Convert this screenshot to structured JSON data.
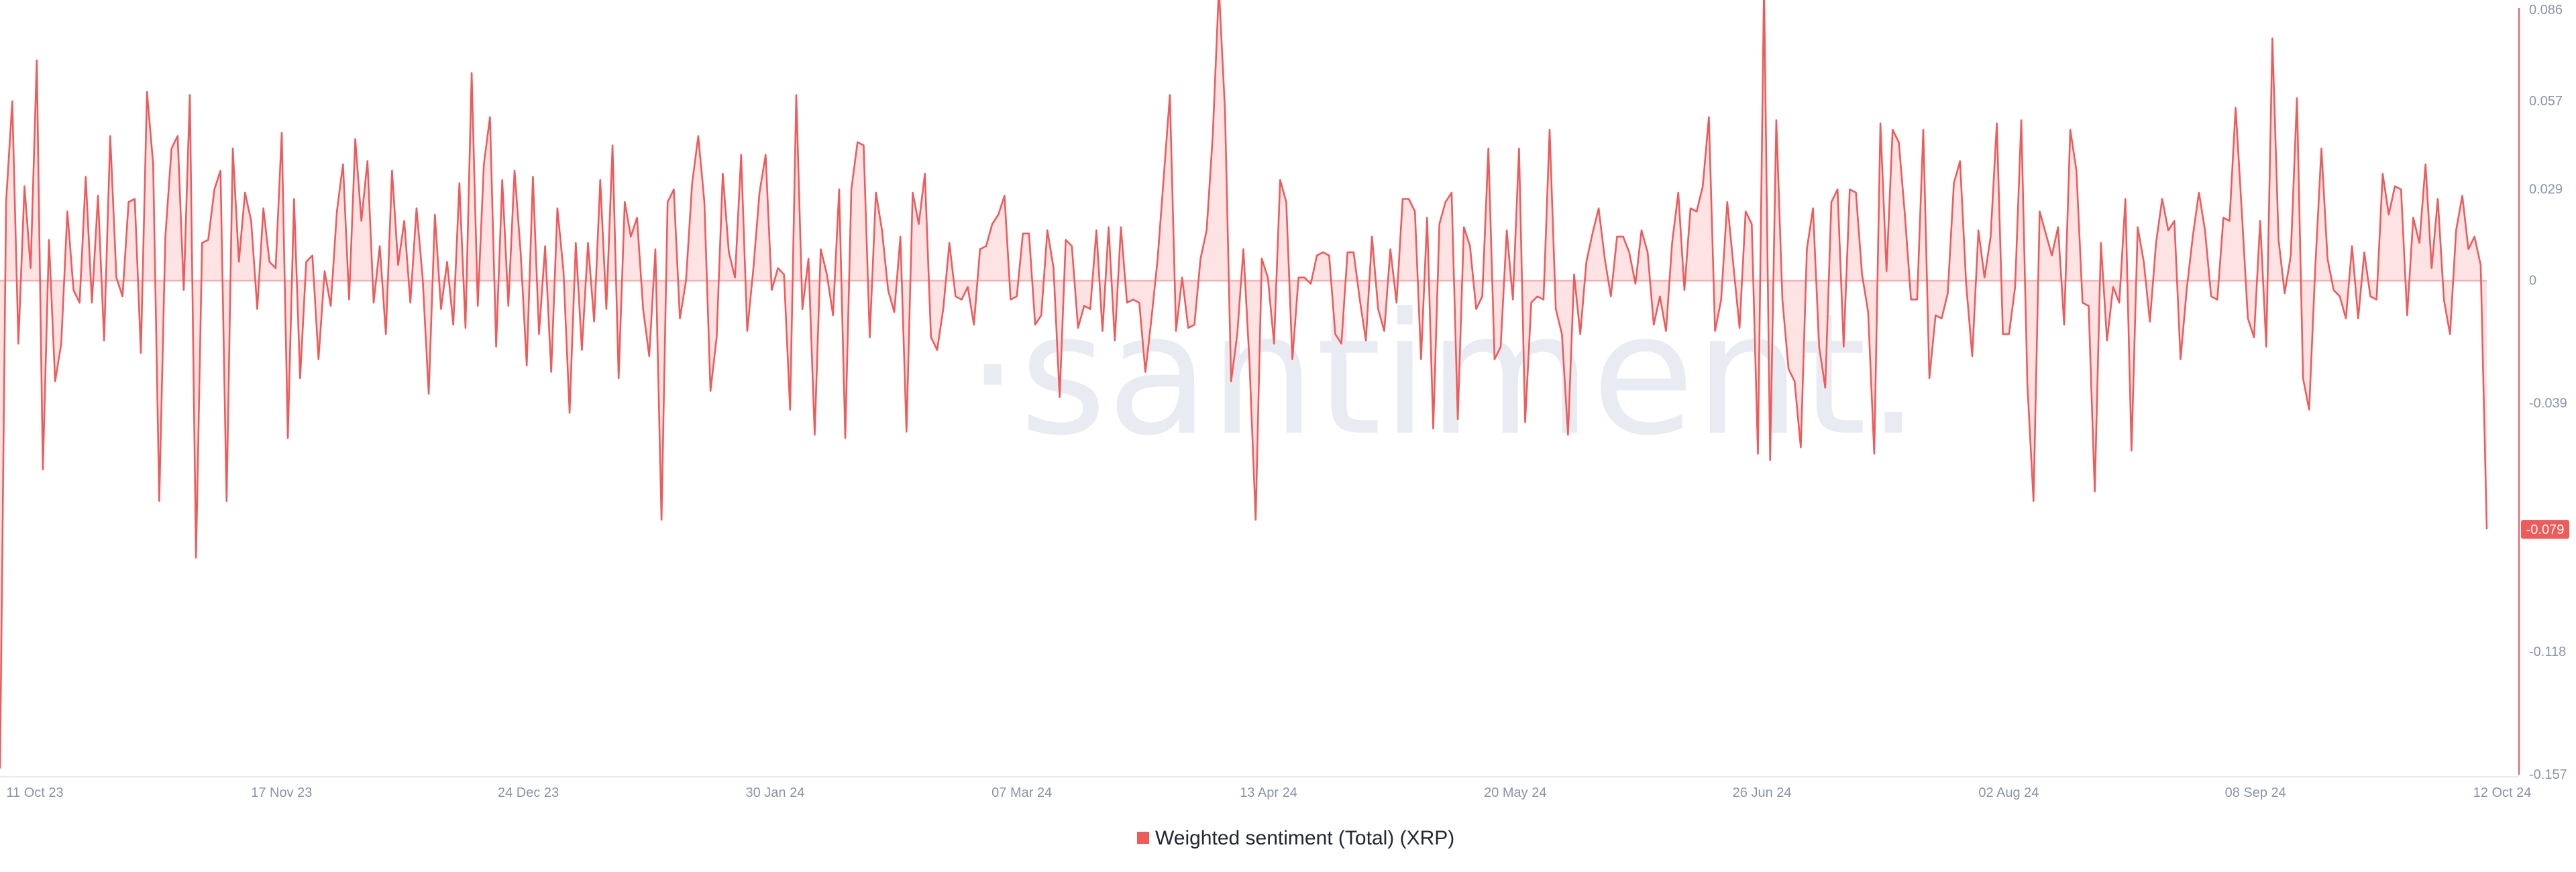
{
  "watermark": "·santiment.",
  "last_value_label": "-0.079",
  "chart_data": {
    "type": "area",
    "series": [
      {
        "name": "Weighted sentiment (Total) (XRP)",
        "color": "#f05a5b",
        "values": [
          -0.155,
          0.025,
          0.057,
          -0.02,
          0.03,
          0.004,
          0.07,
          -0.06,
          0.013,
          -0.032,
          -0.02,
          0.022,
          -0.003,
          -0.007,
          0.033,
          -0.007,
          0.027,
          -0.019,
          0.046,
          0.001,
          -0.005,
          0.025,
          0.026,
          -0.023,
          0.06,
          0.037,
          -0.07,
          0.014,
          0.042,
          0.046,
          -0.003,
          0.059,
          -0.088,
          0.012,
          0.013,
          0.029,
          0.035,
          -0.07,
          0.042,
          0.006,
          0.028,
          0.019,
          -0.009,
          0.023,
          0.006,
          0.004,
          0.047,
          -0.05,
          0.026,
          -0.031,
          0.006,
          0.008,
          -0.025,
          0.003,
          -0.008,
          0.022,
          0.037,
          -0.006,
          0.045,
          0.019,
          0.038,
          -0.007,
          0.011,
          -0.017,
          0.035,
          0.005,
          0.019,
          -0.007,
          0.023,
          0.001,
          -0.036,
          0.021,
          -0.009,
          0.006,
          -0.014,
          0.031,
          -0.015,
          0.066,
          -0.008,
          0.037,
          0.052,
          -0.021,
          0.032,
          -0.008,
          0.035,
          0.009,
          -0.027,
          0.033,
          -0.017,
          0.011,
          -0.029,
          0.023,
          0.003,
          -0.042,
          0.012,
          -0.022,
          0.012,
          -0.013,
          0.032,
          -0.009,
          0.043,
          -0.031,
          0.025,
          0.014,
          0.02,
          -0.009,
          -0.024,
          0.01,
          -0.076,
          0.025,
          0.029,
          -0.012,
          0,
          0.031,
          0.046,
          0.025,
          -0.035,
          -0.018,
          0.034,
          0.009,
          0.001,
          0.04,
          -0.016,
          0.004,
          0.028,
          0.04,
          -0.003,
          0.004,
          0.002,
          -0.041,
          0.059,
          -0.009,
          0.007,
          -0.049,
          0.01,
          0.002,
          -0.011,
          0.029,
          -0.05,
          0.029,
          0.044,
          0.043,
          -0.018,
          0.028,
          0.016,
          -0.003,
          -0.01,
          0.014,
          -0.048,
          0.028,
          0.018,
          0.034,
          -0.018,
          -0.022,
          -0.009,
          0.012,
          -0.005,
          -0.006,
          -0.002,
          -0.014,
          0.01,
          0.011,
          0.018,
          0.021,
          0.027,
          -0.006,
          -0.005,
          0.015,
          0.015,
          -0.014,
          -0.011,
          0.016,
          0.004,
          -0.037,
          0.013,
          0.011,
          -0.015,
          -0.008,
          -0.009,
          0.016,
          -0.016,
          0.017,
          -0.019,
          0.017,
          -0.007,
          -0.006,
          -0.007,
          -0.029,
          -0.012,
          0.007,
          0.033,
          0.059,
          -0.016,
          0.001,
          -0.015,
          -0.014,
          0.007,
          0.016,
          0.046,
          0.093,
          0.054,
          -0.032,
          -0.017,
          0.01,
          -0.026,
          -0.076,
          0.007,
          0.001,
          -0.02,
          0.032,
          0.025,
          -0.025,
          0.001,
          0.001,
          -0.001,
          0.008,
          0.009,
          0.008,
          -0.017,
          -0.02,
          0.009,
          0.009,
          -0.006,
          -0.019,
          0.014,
          -0.009,
          -0.016,
          0.01,
          -0.007,
          0.026,
          0.026,
          0.022,
          -0.025,
          0.02,
          -0.047,
          0.018,
          0.025,
          0.028,
          -0.044,
          0.017,
          0.011,
          -0.009,
          -0.005,
          0.042,
          -0.025,
          -0.021,
          0.016,
          -0.006,
          0.042,
          -0.045,
          -0.007,
          -0.005,
          -0.006,
          0.048,
          -0.009,
          -0.017,
          -0.049,
          0.002,
          -0.017,
          0.006,
          0.015,
          0.023,
          0.007,
          -0.005,
          0.014,
          0.014,
          0.009,
          -0.001,
          0.016,
          0.009,
          -0.014,
          -0.005,
          -0.016,
          0.012,
          0.028,
          -0.003,
          0.023,
          0.022,
          0.03,
          0.052,
          -0.016,
          -0.006,
          0.025,
          0.005,
          -0.015,
          0.022,
          0.018,
          -0.055,
          0.094,
          -0.057,
          0.051,
          -0.006,
          -0.028,
          -0.032,
          -0.053,
          0.01,
          0.023,
          -0.021,
          -0.034,
          0.025,
          0.029,
          -0.021,
          0.029,
          0.028,
          0.002,
          -0.01,
          -0.055,
          0.05,
          0.003,
          0.048,
          0.044,
          0.021,
          -0.006,
          -0.006,
          0.048,
          -0.031,
          -0.011,
          -0.012,
          -0.004,
          0.031,
          0.038,
          -0.001,
          -0.024,
          0.016,
          0.001,
          0.014,
          0.05,
          -0.017,
          -0.017,
          -0.002,
          0.051,
          -0.033,
          -0.07,
          0.022,
          0.015,
          0.008,
          0.017,
          -0.014,
          0.048,
          0.035,
          -0.007,
          -0.008,
          -0.067,
          0.012,
          -0.019,
          -0.002,
          -0.007,
          0.026,
          -0.054,
          0.017,
          0.006,
          -0.013,
          0.012,
          0.026,
          0.016,
          0.019,
          -0.025,
          -0.003,
          0.014,
          0.028,
          0.016,
          -0.005,
          -0.006,
          0.02,
          0.019,
          0.055,
          0.022,
          -0.012,
          -0.018,
          0.019,
          -0.021,
          0.077,
          0.013,
          -0.004,
          0.008,
          0.058,
          -0.031,
          -0.041,
          0.004,
          0.042,
          0.007,
          -0.003,
          -0.005,
          -0.012,
          0.011,
          -0.012,
          0.009,
          -0.005,
          -0.006,
          0.034,
          0.021,
          0.03,
          0.029,
          -0.011,
          0.02,
          0.012,
          0.037,
          0.004,
          0.026,
          -0.006,
          -0.017,
          0.016,
          0.027,
          0.01,
          0.014,
          0.005,
          -0.079
        ]
      }
    ],
    "x_tick_labels": [
      "11 Oct 23",
      "17 Nov 23",
      "24 Dec 23",
      "30 Jan 24",
      "07 Mar 24",
      "13 Apr 24",
      "20 May 24",
      "26 Jun 24",
      "02 Aug 24",
      "08 Sep 24",
      "12 Oct 24"
    ],
    "y_ticks": [
      0.086,
      0.057,
      0.029,
      0,
      -0.039,
      -0.079,
      -0.118,
      -0.157
    ],
    "y_tick_labels": [
      "0.086",
      "0.057",
      "0.029",
      "0",
      "-0.039",
      "-0.079",
      "-0.118",
      "-0.157"
    ],
    "ylim": [
      -0.157,
      0.086
    ],
    "legend": {
      "position": "bottom-center",
      "label": "Weighted sentiment (Total) (XRP)"
    },
    "grid": false,
    "fill_color": "#fde3e3",
    "baseline_color": "#f3a6a6",
    "axis_color": "#f05a5b"
  }
}
